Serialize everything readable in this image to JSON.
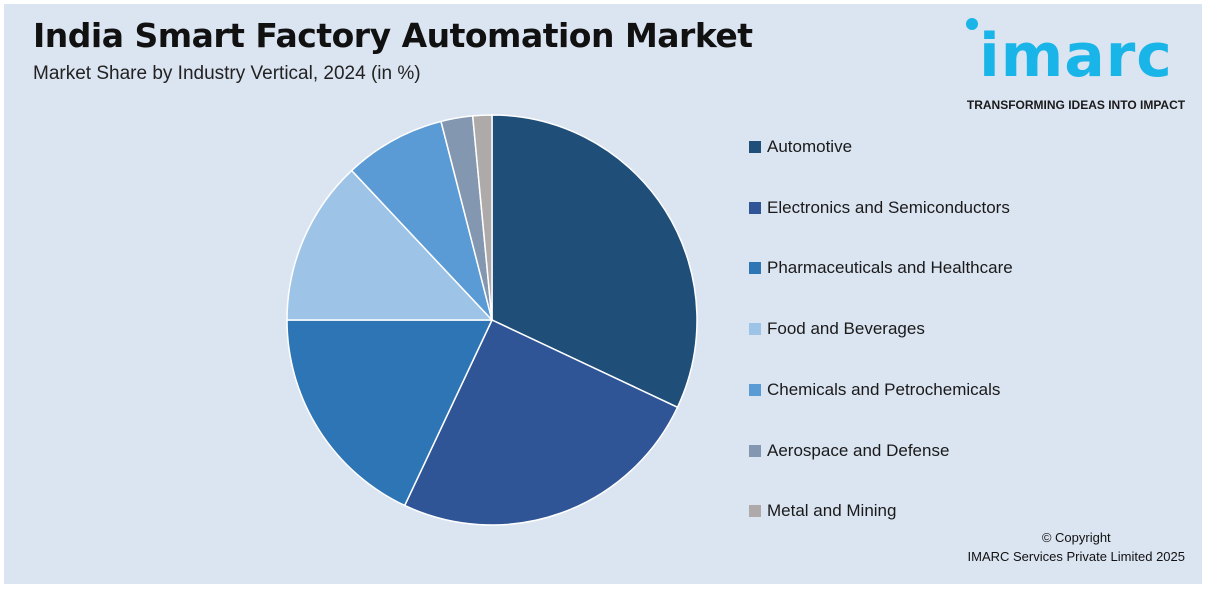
{
  "header": {
    "title": "India Smart Factory Automation Market",
    "subtitle": "Market Share by Industry Vertical, 2024 (in %)"
  },
  "logo": {
    "wordmark": "imarc",
    "tagline": "TRANSFORMING IDEAS INTO IMPACT",
    "color": "#1ab5e8"
  },
  "chart_data": {
    "type": "pie",
    "title": "India Smart Factory Automation Market",
    "subtitle": "Market Share by Industry Vertical, 2024 (in %)",
    "categories": [
      "Automotive",
      "Electronics and Semiconductors",
      "Pharmaceuticals and Healthcare",
      "Food and Beverages",
      "Chemicals and Petrochemicals",
      "Aerospace and Defense",
      "Metal and Mining"
    ],
    "values": [
      32,
      25,
      18,
      13,
      8,
      2.5,
      1.5
    ],
    "colors": [
      "#1f4e79",
      "#2f5597",
      "#2e75b6",
      "#9dc3e6",
      "#5b9bd5",
      "#8497b0",
      "#aeaaaa"
    ],
    "legend_position": "right"
  },
  "footer": {
    "copyright_line1": "© Copyright",
    "copyright_line2": "IMARC Services Private Limited 2025"
  }
}
